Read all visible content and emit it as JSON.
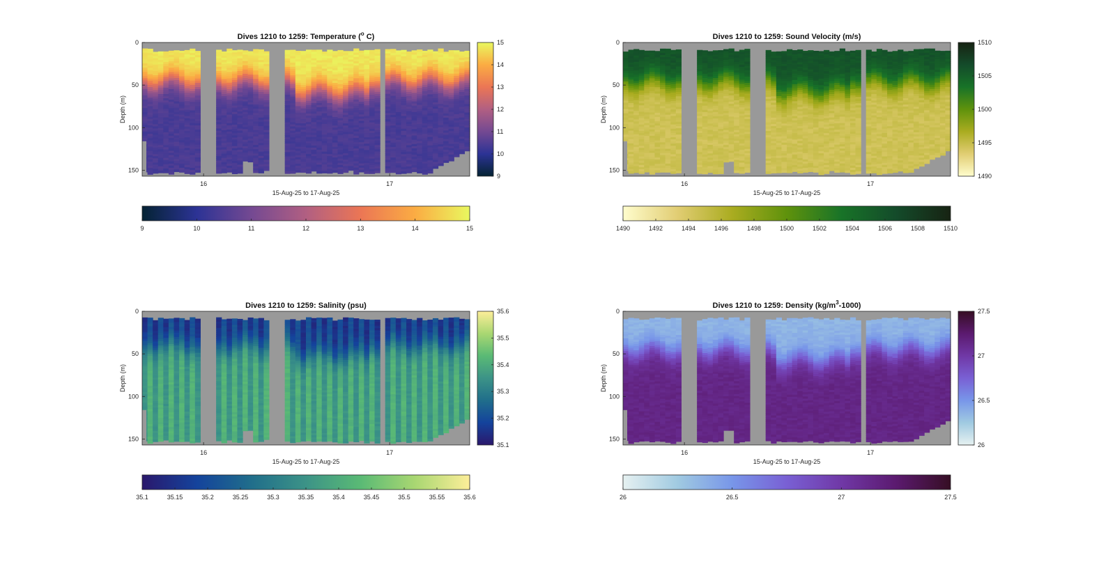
{
  "chart_data": [
    {
      "type": "heatmap",
      "title_text": "Dives 1210 to 1259: Temperature (",
      "title_sup": "o",
      "title_tail": " C)",
      "ylabel": "Depth (m)",
      "xlabel": "15-Aug-25 to 17-Aug-25",
      "xticks": [
        "16",
        "17"
      ],
      "yticks": [
        "0",
        "50",
        "100",
        "150"
      ],
      "ylim": [
        0,
        157
      ],
      "variable": "temperature",
      "colormap": "thermal",
      "colorbar_range": [
        9,
        15
      ],
      "colorbar_ticks": [
        "9",
        "10",
        "11",
        "12",
        "13",
        "14",
        "15"
      ],
      "hbar_ticks": [
        "9",
        "10",
        "11",
        "12",
        "13",
        "14",
        "15"
      ],
      "profile": {
        "surface": 14.8,
        "bottom": 10.4,
        "mixed_layer_m": 45
      },
      "gaps_days": [
        [
          15.97,
          16.06
        ],
        [
          16.34,
          16.43
        ],
        [
          16.94,
          16.97
        ]
      ]
    },
    {
      "type": "heatmap",
      "title_text": "Dives 1210 to 1259: Sound Velocity (m/s)",
      "title_sup": "",
      "title_tail": "",
      "ylabel": "Depth (m)",
      "xlabel": "15-Aug-25 to 17-Aug-25",
      "xticks": [
        "16",
        "17"
      ],
      "yticks": [
        "0",
        "50",
        "100",
        "150"
      ],
      "ylim": [
        0,
        157
      ],
      "variable": "sound_velocity",
      "colormap": "speed",
      "colorbar_range": [
        1490,
        1510
      ],
      "colorbar_ticks": [
        "1490",
        "1495",
        "1500",
        "1505",
        "1510"
      ],
      "hbar_ticks": [
        "1490",
        "1492",
        "1494",
        "1496",
        "1498",
        "1500",
        "1502",
        "1504",
        "1506",
        "1508",
        "1510"
      ],
      "profile": {
        "surface": 1506,
        "bottom": 1494.5,
        "mixed_layer_m": 45
      },
      "gaps_days": [
        [
          15.97,
          16.06
        ],
        [
          16.34,
          16.43
        ],
        [
          16.94,
          16.97
        ]
      ]
    },
    {
      "type": "heatmap",
      "title_text": "Dives 1210 to 1259: Salinity (psu)",
      "title_sup": "",
      "title_tail": "",
      "ylabel": "Depth (m)",
      "xlabel": "15-Aug-25 to 17-Aug-25",
      "xticks": [
        "16",
        "17"
      ],
      "yticks": [
        "0",
        "50",
        "100",
        "150"
      ],
      "ylim": [
        0,
        157
      ],
      "variable": "salinity",
      "colormap": "haline",
      "colorbar_range": [
        35.1,
        35.6
      ],
      "colorbar_ticks": [
        "35.1",
        "35.2",
        "35.3",
        "35.4",
        "35.5",
        "35.6"
      ],
      "hbar_ticks": [
        "35.1",
        "35.15",
        "35.2",
        "35.25",
        "35.3",
        "35.35",
        "35.4",
        "35.45",
        "35.5",
        "35.55",
        "35.6"
      ],
      "profile": {
        "surface": 35.17,
        "bottom": 35.38,
        "mixed_layer_m": 40
      },
      "gaps_days": [
        [
          15.97,
          16.06
        ],
        [
          16.34,
          16.43
        ],
        [
          16.94,
          16.97
        ]
      ]
    },
    {
      "type": "heatmap",
      "title_text": "Dives 1210 to 1259: Density (kg/m",
      "title_sup": "3",
      "title_tail": "-1000)",
      "ylabel": "Depth (m)",
      "xlabel": "15-Aug-25 to 17-Aug-25",
      "xticks": [
        "16",
        "17"
      ],
      "yticks": [
        "0",
        "50",
        "100",
        "150"
      ],
      "ylim": [
        0,
        157
      ],
      "variable": "density",
      "colormap": "dense",
      "colorbar_range": [
        26,
        27.5
      ],
      "colorbar_ticks": [
        "26",
        "26.5",
        "27",
        "27.5"
      ],
      "hbar_ticks": [
        "26",
        "26.5",
        "27",
        "27.5"
      ],
      "profile": {
        "surface": 26.35,
        "bottom": 27.15,
        "mixed_layer_m": 45
      },
      "gaps_days": [
        [
          15.97,
          16.06
        ],
        [
          16.34,
          16.43
        ],
        [
          16.94,
          16.97
        ]
      ]
    }
  ],
  "colors": {
    "nodata": "#999999",
    "axis": "#262626",
    "thermal": [
      "#042333",
      "#2c3395",
      "#744992",
      "#b15f82",
      "#eb7655",
      "#fbac43",
      "#e9f85f"
    ],
    "speed": [
      "#fffdcd",
      "#e1cd73",
      "#aaac20",
      "#5f920c",
      "#187328",
      "#144b2a",
      "#172313"
    ],
    "haline": [
      "#2a186c",
      "#14439c",
      "#206e8b",
      "#3c9387",
      "#5aba75",
      "#a9d772",
      "#fdee99"
    ],
    "dense": [
      "#e6f1f1",
      "#a0cae1",
      "#7896e9",
      "#7960d4",
      "#7038a6",
      "#5b1a6f",
      "#360e24"
    ]
  }
}
